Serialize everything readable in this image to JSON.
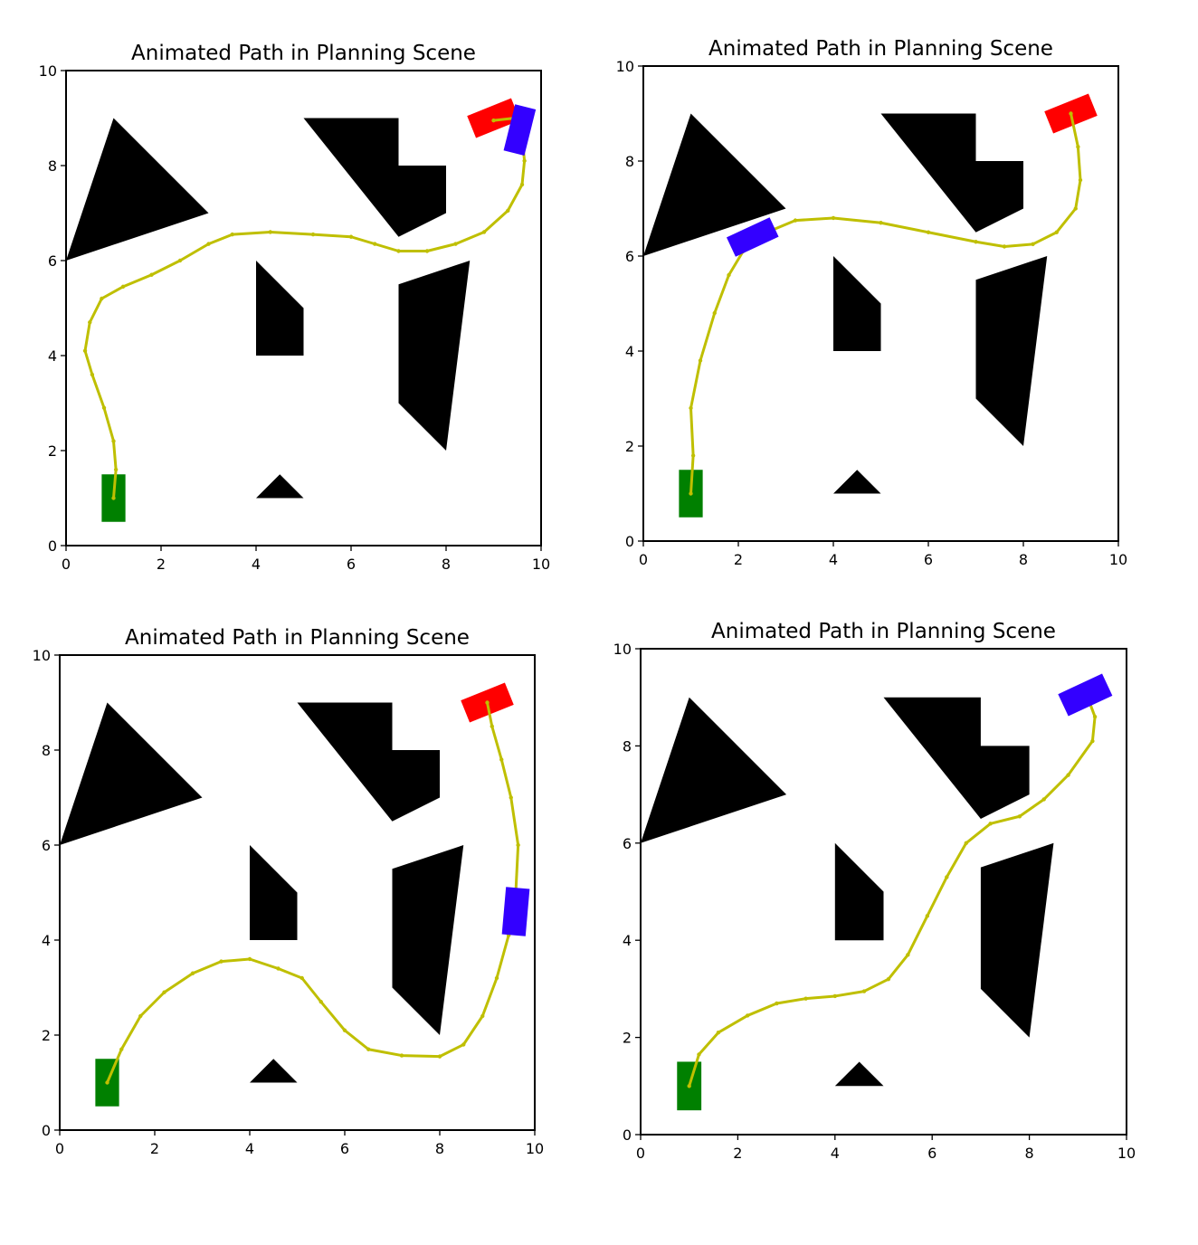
{
  "chart_data": [
    {
      "type": "scatter",
      "title": "Animated Path in Planning Scene",
      "xlim": [
        0,
        10
      ],
      "ylim": [
        0,
        10
      ],
      "xticks": [
        "0",
        "2",
        "4",
        "6",
        "8",
        "10"
      ],
      "yticks": [
        "0",
        "2",
        "4",
        "6",
        "8",
        "10"
      ],
      "grid": false,
      "obstacles": [
        [
          [
            0,
            6
          ],
          [
            1,
            9
          ],
          [
            3,
            7
          ]
        ],
        [
          [
            5,
            9
          ],
          [
            7,
            9
          ],
          [
            7,
            8
          ],
          [
            8,
            8
          ],
          [
            8,
            7
          ],
          [
            7,
            6.5
          ]
        ],
        [
          [
            4,
            6
          ],
          [
            5,
            5
          ],
          [
            5,
            4
          ],
          [
            4,
            4
          ]
        ],
        [
          [
            7,
            5.5
          ],
          [
            8.5,
            6
          ],
          [
            8,
            2
          ],
          [
            7,
            3
          ]
        ],
        [
          [
            4,
            1
          ],
          [
            4.5,
            1.5
          ],
          [
            5,
            1
          ]
        ]
      ],
      "start": {
        "x": 1,
        "y": 1,
        "width": 0.5,
        "height": 1,
        "angle": 0,
        "color": "#008000"
      },
      "goal": {
        "x": 9,
        "y": 9,
        "width": 1,
        "height": 0.5,
        "angle": 22,
        "color": "#ff0000"
      },
      "robot": {
        "x": 9.55,
        "y": 8.75,
        "width": 0.45,
        "height": 1,
        "angle": -14,
        "color": "#3300ff"
      },
      "path_color": "#bfbf00",
      "path": [
        [
          1,
          1
        ],
        [
          1.05,
          1.6
        ],
        [
          1,
          2.2
        ],
        [
          0.8,
          2.9
        ],
        [
          0.55,
          3.6
        ],
        [
          0.4,
          4.1
        ],
        [
          0.5,
          4.7
        ],
        [
          0.75,
          5.2
        ],
        [
          1.2,
          5.45
        ],
        [
          1.8,
          5.7
        ],
        [
          2.4,
          6
        ],
        [
          3,
          6.35
        ],
        [
          3.5,
          6.55
        ],
        [
          4.3,
          6.6
        ],
        [
          5.2,
          6.55
        ],
        [
          6,
          6.5
        ],
        [
          6.5,
          6.35
        ],
        [
          7,
          6.2
        ],
        [
          7.6,
          6.2
        ],
        [
          8.2,
          6.35
        ],
        [
          8.8,
          6.6
        ],
        [
          9.3,
          7.05
        ],
        [
          9.6,
          7.6
        ],
        [
          9.65,
          8.1
        ],
        [
          9.6,
          8.6
        ],
        [
          9.45,
          9
        ],
        [
          9,
          8.95
        ]
      ]
    },
    {
      "type": "scatter",
      "title": "Animated Path in Planning Scene",
      "xlim": [
        0,
        10
      ],
      "ylim": [
        0,
        10
      ],
      "xticks": [
        "0",
        "2",
        "4",
        "6",
        "8",
        "10"
      ],
      "yticks": [
        "0",
        "2",
        "4",
        "6",
        "8",
        "10"
      ],
      "grid": false,
      "obstacles": [
        [
          [
            0,
            6
          ],
          [
            1,
            9
          ],
          [
            3,
            7
          ]
        ],
        [
          [
            5,
            9
          ],
          [
            7,
            9
          ],
          [
            7,
            8
          ],
          [
            8,
            8
          ],
          [
            8,
            7
          ],
          [
            7,
            6.5
          ]
        ],
        [
          [
            4,
            6
          ],
          [
            5,
            5
          ],
          [
            5,
            4
          ],
          [
            4,
            4
          ]
        ],
        [
          [
            7,
            5.5
          ],
          [
            8.5,
            6
          ],
          [
            8,
            2
          ],
          [
            7,
            3
          ]
        ],
        [
          [
            4,
            1
          ],
          [
            4.5,
            1.5
          ],
          [
            5,
            1
          ]
        ]
      ],
      "start": {
        "x": 1,
        "y": 1,
        "width": 0.5,
        "height": 1,
        "angle": 0,
        "color": "#008000"
      },
      "goal": {
        "x": 9,
        "y": 9,
        "width": 1,
        "height": 0.5,
        "angle": 22,
        "color": "#ff0000"
      },
      "robot": {
        "x": 2.3,
        "y": 6.4,
        "width": 1,
        "height": 0.45,
        "angle": 25,
        "color": "#3300ff"
      },
      "path_color": "#bfbf00",
      "path": [
        [
          1,
          1
        ],
        [
          1.05,
          1.8
        ],
        [
          1,
          2.8
        ],
        [
          1.2,
          3.8
        ],
        [
          1.5,
          4.8
        ],
        [
          1.8,
          5.6
        ],
        [
          2.1,
          6.1
        ],
        [
          2.6,
          6.5
        ],
        [
          3.2,
          6.75
        ],
        [
          4,
          6.8
        ],
        [
          5,
          6.7
        ],
        [
          6,
          6.5
        ],
        [
          7,
          6.3
        ],
        [
          7.6,
          6.2
        ],
        [
          8.2,
          6.25
        ],
        [
          8.7,
          6.5
        ],
        [
          9.1,
          7
        ],
        [
          9.2,
          7.6
        ],
        [
          9.15,
          8.3
        ],
        [
          9,
          9
        ]
      ]
    },
    {
      "type": "scatter",
      "title": "Animated Path in Planning Scene",
      "xlim": [
        0,
        10
      ],
      "ylim": [
        0,
        10
      ],
      "xticks": [
        "0",
        "2",
        "4",
        "6",
        "8",
        "10"
      ],
      "yticks": [
        "0",
        "2",
        "4",
        "6",
        "8",
        "10"
      ],
      "grid": false,
      "obstacles": [
        [
          [
            0,
            6
          ],
          [
            1,
            9
          ],
          [
            3,
            7
          ]
        ],
        [
          [
            5,
            9
          ],
          [
            7,
            9
          ],
          [
            7,
            8
          ],
          [
            8,
            8
          ],
          [
            8,
            7
          ],
          [
            7,
            6.5
          ]
        ],
        [
          [
            4,
            6
          ],
          [
            5,
            5
          ],
          [
            5,
            4
          ],
          [
            4,
            4
          ]
        ],
        [
          [
            7,
            5.5
          ],
          [
            8.5,
            6
          ],
          [
            8,
            2
          ],
          [
            7,
            3
          ]
        ],
        [
          [
            4,
            1
          ],
          [
            4.5,
            1.5
          ],
          [
            5,
            1
          ]
        ]
      ],
      "start": {
        "x": 1,
        "y": 1,
        "width": 0.5,
        "height": 1,
        "angle": 0,
        "color": "#008000"
      },
      "goal": {
        "x": 9,
        "y": 9,
        "width": 1,
        "height": 0.5,
        "angle": 22,
        "color": "#ff0000"
      },
      "robot": {
        "x": 9.6,
        "y": 4.6,
        "width": 0.5,
        "height": 1,
        "angle": -5,
        "color": "#3300ff"
      },
      "path_color": "#bfbf00",
      "path": [
        [
          1,
          1
        ],
        [
          1.3,
          1.7
        ],
        [
          1.7,
          2.4
        ],
        [
          2.2,
          2.9
        ],
        [
          2.8,
          3.3
        ],
        [
          3.4,
          3.55
        ],
        [
          4,
          3.6
        ],
        [
          4.6,
          3.4
        ],
        [
          5.1,
          3.2
        ],
        [
          5.5,
          2.7
        ],
        [
          6,
          2.1
        ],
        [
          6.5,
          1.7
        ],
        [
          7.2,
          1.57
        ],
        [
          8,
          1.55
        ],
        [
          8.5,
          1.8
        ],
        [
          8.9,
          2.4
        ],
        [
          9.2,
          3.2
        ],
        [
          9.45,
          4.1
        ],
        [
          9.6,
          5
        ],
        [
          9.65,
          6
        ],
        [
          9.5,
          7
        ],
        [
          9.3,
          7.8
        ],
        [
          9.1,
          8.5
        ],
        [
          9,
          9
        ]
      ]
    },
    {
      "type": "scatter",
      "title": "Animated Path in Planning Scene",
      "xlim": [
        0,
        10
      ],
      "ylim": [
        0,
        10
      ],
      "xticks": [
        "0",
        "2",
        "4",
        "6",
        "8",
        "10"
      ],
      "yticks": [
        "0",
        "2",
        "4",
        "6",
        "8",
        "10"
      ],
      "grid": false,
      "obstacles": [
        [
          [
            0,
            6
          ],
          [
            1,
            9
          ],
          [
            3,
            7
          ]
        ],
        [
          [
            5,
            9
          ],
          [
            7,
            9
          ],
          [
            7,
            8
          ],
          [
            8,
            8
          ],
          [
            8,
            7
          ],
          [
            7,
            6.5
          ]
        ],
        [
          [
            4,
            6
          ],
          [
            5,
            5
          ],
          [
            5,
            4
          ],
          [
            4,
            4
          ]
        ],
        [
          [
            7,
            5.5
          ],
          [
            8.5,
            6
          ],
          [
            8,
            2
          ],
          [
            7,
            3
          ]
        ],
        [
          [
            4,
            1
          ],
          [
            4.5,
            1.5
          ],
          [
            5,
            1
          ]
        ]
      ],
      "start": {
        "x": 1,
        "y": 1,
        "width": 0.5,
        "height": 1,
        "angle": 0,
        "color": "#008000"
      },
      "goal": null,
      "robot": {
        "x": 9.15,
        "y": 9.05,
        "width": 1,
        "height": 0.5,
        "angle": 25,
        "color": "#3300ff"
      },
      "path_color": "#bfbf00",
      "path": [
        [
          1,
          1
        ],
        [
          1.2,
          1.65
        ],
        [
          1.6,
          2.1
        ],
        [
          2.2,
          2.45
        ],
        [
          2.8,
          2.7
        ],
        [
          3.4,
          2.8
        ],
        [
          4,
          2.85
        ],
        [
          4.6,
          2.95
        ],
        [
          5.1,
          3.2
        ],
        [
          5.5,
          3.7
        ],
        [
          5.9,
          4.5
        ],
        [
          6.3,
          5.3
        ],
        [
          6.7,
          6
        ],
        [
          7.2,
          6.4
        ],
        [
          7.8,
          6.55
        ],
        [
          8.3,
          6.9
        ],
        [
          8.8,
          7.4
        ],
        [
          9.3,
          8.1
        ],
        [
          9.35,
          8.6
        ],
        [
          9.2,
          9
        ],
        [
          9,
          9.05
        ]
      ]
    }
  ]
}
